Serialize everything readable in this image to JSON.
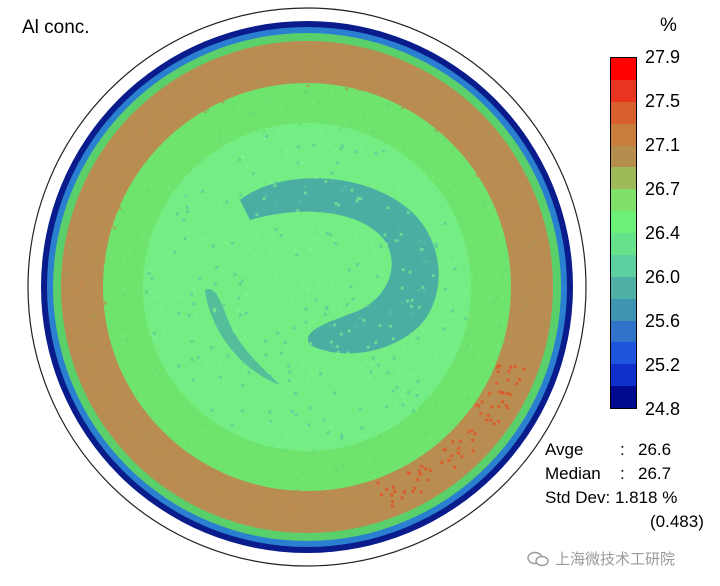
{
  "chart_data": {
    "type": "heatmap",
    "title": "Al conc.",
    "unit": "%",
    "colorbar": {
      "ticks": [
        "27.9",
        "27.5",
        "27.1",
        "26.7",
        "26.4",
        "26.0",
        "25.6",
        "25.2",
        "24.8"
      ],
      "min": 24.8,
      "max": 27.9,
      "colors": [
        "#ff0000",
        "#e8351f",
        "#d9602d",
        "#c87d3c",
        "#b58d4d",
        "#9fba59",
        "#7fe06a",
        "#6df078",
        "#66e28a",
        "#5ecfa0",
        "#4fb0a8",
        "#3f94b4",
        "#2f74c8",
        "#1f55dd",
        "#1030cc",
        "#000a8c"
      ]
    },
    "zones": [
      {
        "name": "edge",
        "value": 24.9,
        "color": "#0a1c8c"
      },
      {
        "name": "edge-transition",
        "value": 25.8,
        "color": "#2a7fd0"
      },
      {
        "name": "edge-green",
        "value": 26.4,
        "color": "#5ad06a"
      },
      {
        "name": "outer-ring",
        "value": 27.0,
        "color": "#b98d52"
      },
      {
        "name": "middle-ring",
        "value": 26.5,
        "color": "#6ee46c"
      },
      {
        "name": "inner-region",
        "value": 26.4,
        "color": "#74ee84"
      },
      {
        "name": "crescent",
        "value": 26.1,
        "color": "#4aaea2"
      }
    ],
    "stats": {
      "avge_label": "Avge",
      "avge": "26.6",
      "median_label": "Median",
      "median": "26.7",
      "stddev_label": "Std Dev",
      "stddev": "1.818 %",
      "stddev_abs": "(0.483)"
    }
  },
  "watermark": "上海微技术工研院"
}
